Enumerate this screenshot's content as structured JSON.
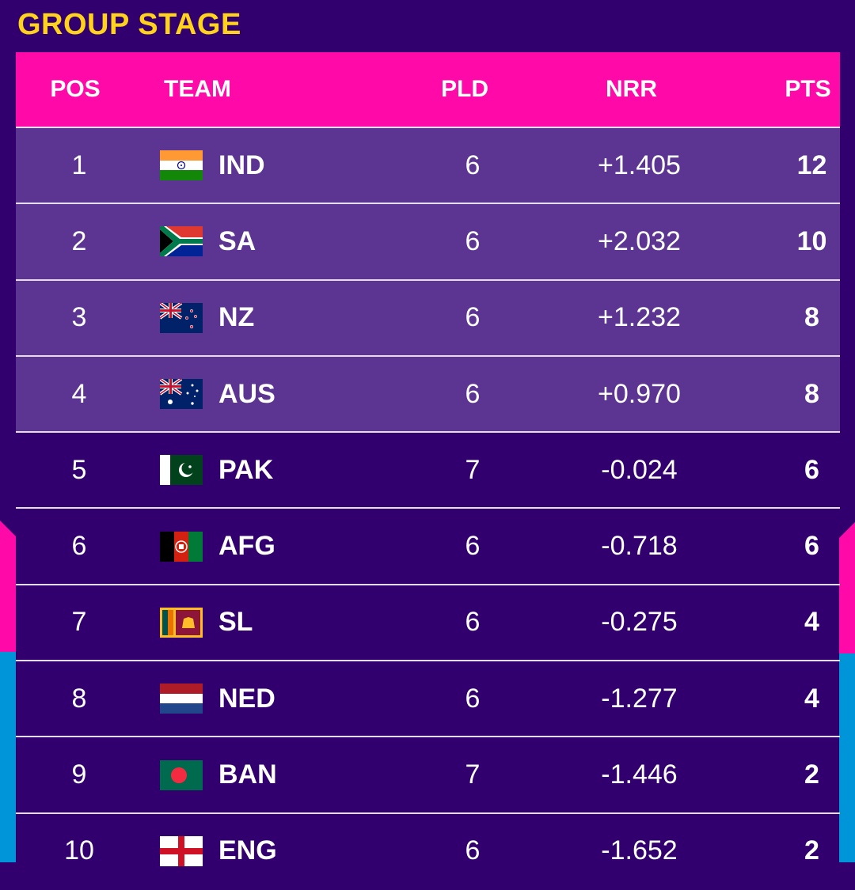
{
  "title": "GROUP STAGE",
  "columns": {
    "pos": "POS",
    "team": "TEAM",
    "pld": "PLD",
    "nrr": "NRR",
    "pts": "PTS"
  },
  "rows": [
    {
      "pos": "1",
      "team": "IND",
      "pld": "6",
      "nrr": "+1.405",
      "pts": "12",
      "flag": "india-flag-icon",
      "highlight": true
    },
    {
      "pos": "2",
      "team": "SA",
      "pld": "6",
      "nrr": "+2.032",
      "pts": "10",
      "flag": "south-africa-flag-icon",
      "highlight": true
    },
    {
      "pos": "3",
      "team": "NZ",
      "pld": "6",
      "nrr": "+1.232",
      "pts": "8",
      "flag": "new-zealand-flag-icon",
      "highlight": true
    },
    {
      "pos": "4",
      "team": "AUS",
      "pld": "6",
      "nrr": "+0.970",
      "pts": "8",
      "flag": "australia-flag-icon",
      "highlight": true
    },
    {
      "pos": "5",
      "team": "PAK",
      "pld": "7",
      "nrr": "-0.024",
      "pts": "6",
      "flag": "pakistan-flag-icon",
      "highlight": false
    },
    {
      "pos": "6",
      "team": "AFG",
      "pld": "6",
      "nrr": "-0.718",
      "pts": "6",
      "flag": "afghanistan-flag-icon",
      "highlight": false
    },
    {
      "pos": "7",
      "team": "SL",
      "pld": "6",
      "nrr": "-0.275",
      "pts": "4",
      "flag": "sri-lanka-flag-icon",
      "highlight": false
    },
    {
      "pos": "8",
      "team": "NED",
      "pld": "6",
      "nrr": "-1.277",
      "pts": "4",
      "flag": "netherlands-flag-icon",
      "highlight": false
    },
    {
      "pos": "9",
      "team": "BAN",
      "pld": "7",
      "nrr": "-1.446",
      "pts": "2",
      "flag": "bangladesh-flag-icon",
      "highlight": false
    },
    {
      "pos": "10",
      "team": "ENG",
      "pld": "6",
      "nrr": "-1.652",
      "pts": "2",
      "flag": "england-flag-icon",
      "highlight": false
    }
  ],
  "colors": {
    "background": "#32006e",
    "header": "#ff0aa8",
    "highlight_row": "#5c3592",
    "title": "#ffd21c",
    "accent_blue": "#0095d9"
  }
}
